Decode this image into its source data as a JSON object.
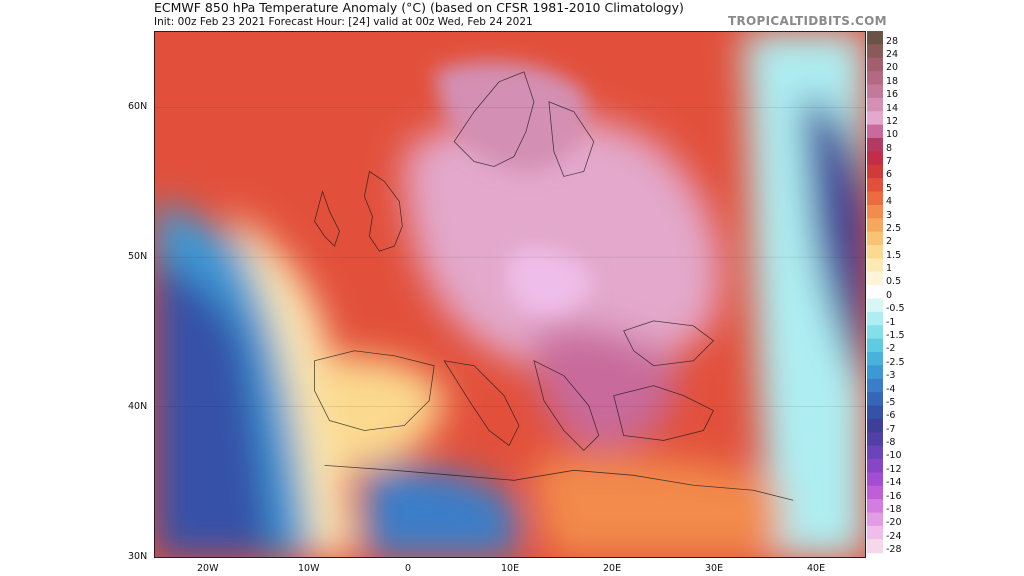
{
  "title": "ECMWF 850 hPa Temperature Anomaly (°C) (based on CFSR 1981-2010 Climatology)",
  "subtitle": "Init: 00z Feb 23 2021    Forecast Hour: [24]    valid at 00z Wed, Feb 24 2021",
  "brand": "TROPICALTIDBITS.COM",
  "lat_labels": [
    "60N",
    "50N",
    "40N",
    "30N"
  ],
  "lon_labels": [
    "20W",
    "10W",
    "0",
    "10E",
    "20E",
    "30E",
    "40E"
  ],
  "colorbar": {
    "labels": [
      "28",
      "24",
      "20",
      "18",
      "16",
      "14",
      "12",
      "10",
      "8",
      "7",
      "6",
      "5",
      "4",
      "3",
      "2.5",
      "2",
      "1.5",
      "1",
      "0.5",
      "0",
      "-0.5",
      "-1",
      "-1.5",
      "-2",
      "-2.5",
      "-3",
      "-4",
      "-5",
      "-6",
      "-7",
      "-8",
      "-10",
      "-12",
      "-14",
      "-16",
      "-18",
      "-20",
      "-24",
      "-28"
    ],
    "colors": [
      "#6b5247",
      "#8a5a59",
      "#a35f6d",
      "#b56882",
      "#c3799a",
      "#d390b4",
      "#e3a8cb",
      "#c86a9b",
      "#b23a63",
      "#c32d45",
      "#d23a3a",
      "#e2503b",
      "#ec6b3f",
      "#f28b4b",
      "#f6a85c",
      "#f9c274",
      "#fbd98e",
      "#fde9b2",
      "#fff3d8",
      "#ffffff",
      "#d9f6f7",
      "#aeeef2",
      "#83e0ea",
      "#5ecbe3",
      "#47b3dc",
      "#3d99d4",
      "#3a7ec9",
      "#3566ba",
      "#3551a8",
      "#3d3f98",
      "#5140a6",
      "#6a44b8",
      "#8646c6",
      "#a34ed2",
      "#c05ed9",
      "#d57ce0",
      "#e49be6",
      "#efbde9",
      "#f6d8ea"
    ]
  },
  "colors": {
    "warm_core": "#d23a3a",
    "neutral": "#ffffff",
    "cold_core": "#3566ba"
  }
}
